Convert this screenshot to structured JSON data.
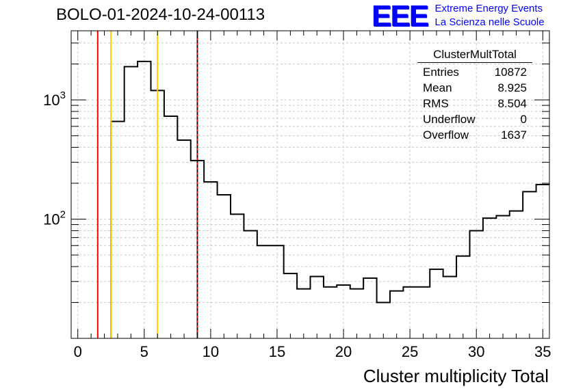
{
  "title": "BOLO-01-2024-10-24-00113",
  "logo": {
    "letters": "EEE",
    "line1": "Extreme Energy Events",
    "line2": "La Scienza nelle Scuole",
    "color": "#0000ff"
  },
  "stats_box": {
    "name": "ClusterMultTotal",
    "rows": [
      {
        "label": "Entries",
        "value": "10872"
      },
      {
        "label": "Mean",
        "value": "8.925"
      },
      {
        "label": "RMS",
        "value": "8.504"
      },
      {
        "label": "Underflow",
        "value": "0"
      },
      {
        "label": "Overflow",
        "value": "1637"
      }
    ]
  },
  "chart_data": {
    "type": "histogram",
    "xlabel": "Cluster multiplicity Total",
    "xlim": [
      -0.5,
      35.5
    ],
    "ylim": [
      10,
      3800
    ],
    "yscale": "log",
    "grid": true,
    "x_ticks": [
      0,
      5,
      10,
      15,
      20,
      25,
      30,
      35
    ],
    "y_tick_labels": [
      {
        "value": 100,
        "base": "10",
        "exp": "2"
      },
      {
        "value": 1000,
        "base": "10",
        "exp": "3"
      }
    ],
    "bin_edges": [
      -0.5,
      0.5,
      1.5,
      2.5,
      3.5,
      4.5,
      5.5,
      6.5,
      7.5,
      8.5,
      9.5,
      10.5,
      11.5,
      12.5,
      13.5,
      14.5,
      15.5,
      16.5,
      17.5,
      18.5,
      19.5,
      20.5,
      21.5,
      22.5,
      23.5,
      24.5,
      25.5,
      26.5,
      27.5,
      28.5,
      29.5,
      30.5,
      31.5,
      32.5,
      33.5,
      34.5,
      35.5
    ],
    "counts": [
      0,
      0,
      0,
      660,
      1900,
      2100,
      1200,
      730,
      460,
      310,
      205,
      160,
      110,
      80,
      60,
      60,
      35,
      26,
      33,
      27,
      28,
      26,
      32,
      20,
      25,
      27,
      27,
      38,
      33,
      49,
      80,
      102,
      107,
      117,
      170,
      195
    ],
    "line_color": "#000000",
    "vertical_lines": [
      {
        "x": 1.5,
        "color": "#ff0000",
        "style": "solid"
      },
      {
        "x": 2.5,
        "color": "#ffcc00",
        "style": "solid"
      },
      {
        "x": 6.0,
        "color": "#ffcc00",
        "style": "solid"
      },
      {
        "x": 9.0,
        "color": "#ff0000",
        "style": "solid"
      },
      {
        "x": 9.0,
        "color": "#000000",
        "style": "dashed"
      }
    ]
  }
}
